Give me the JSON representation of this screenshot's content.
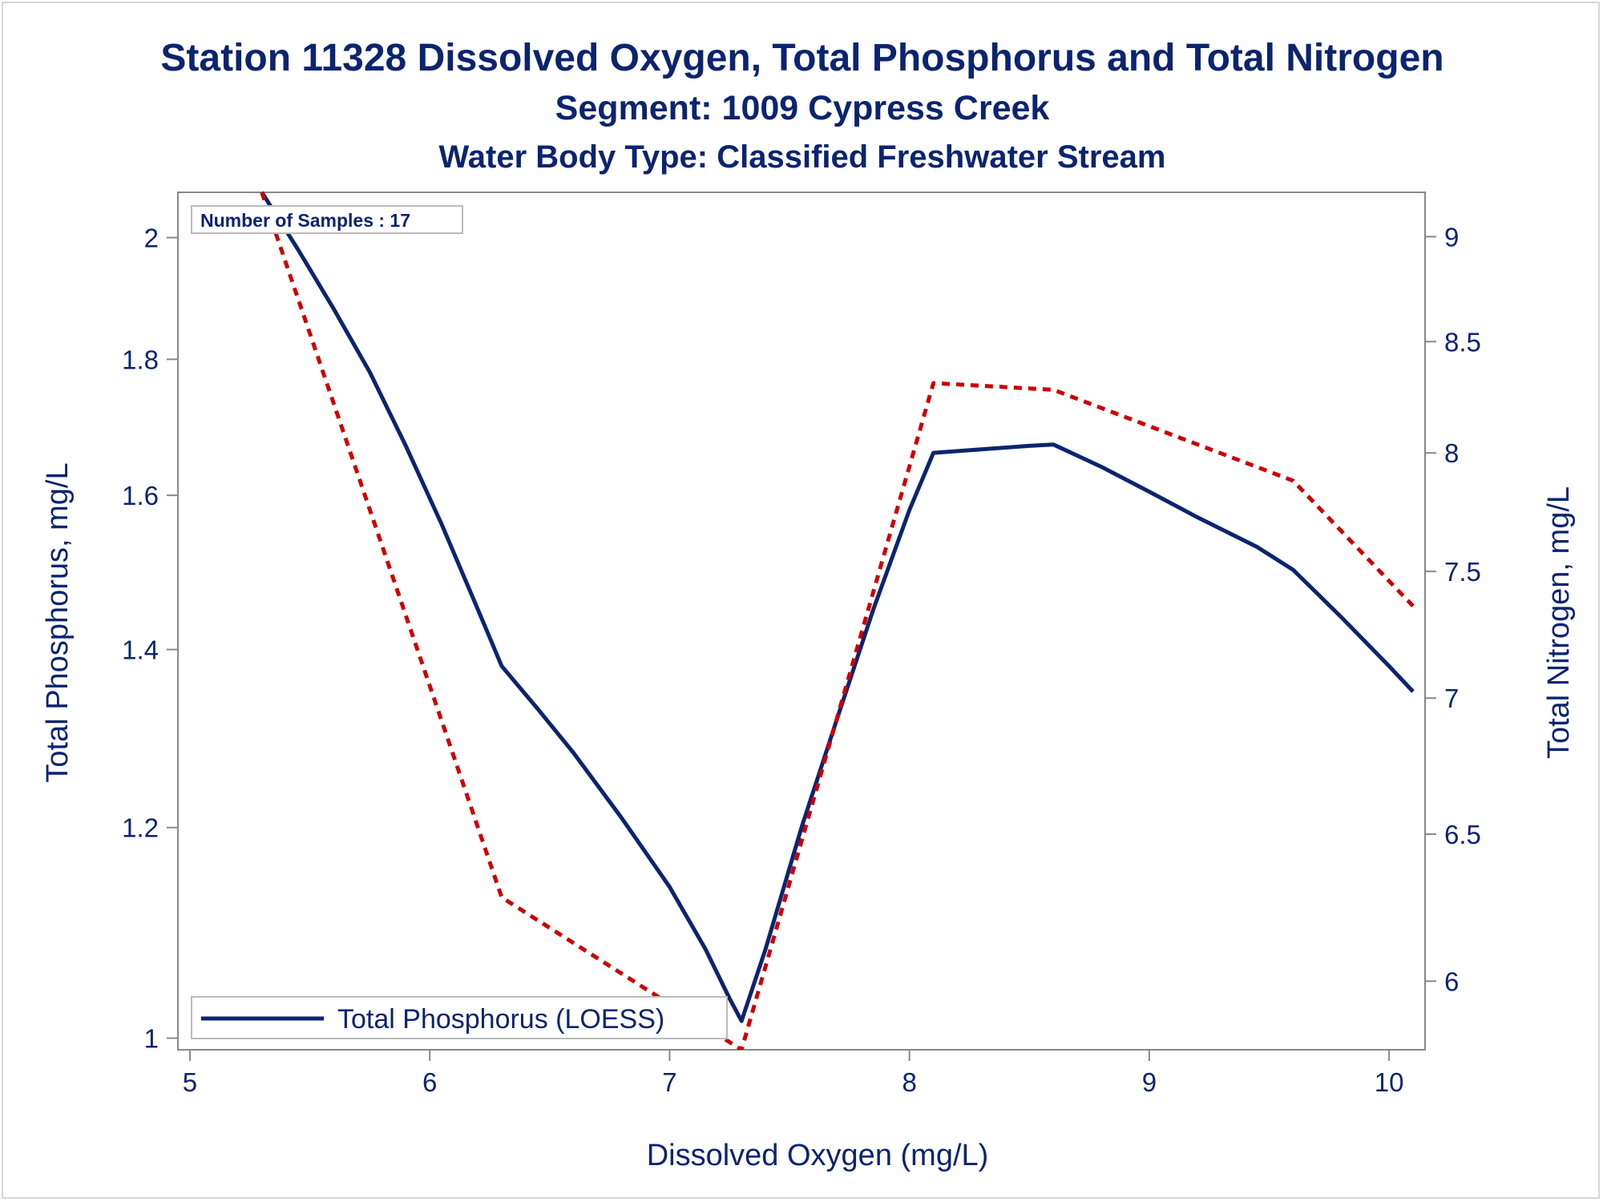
{
  "chart_data": {
    "type": "line",
    "title": "Station 11328  Dissolved Oxygen, Total Phosphorus and Total Nitrogen",
    "subtitle": "Segment: 1009  Cypress Creek",
    "subtitle2": "Water Body Type: Classified Freshwater Stream",
    "xlabel": "Dissolved Oxygen (mg/L)",
    "ylabel": "Total Phosphorus, mg/L",
    "y2label": "Total Nitrogen, mg/L",
    "xlim": [
      4.95,
      10.15
    ],
    "ylim": [
      0.99,
      2.08
    ],
    "ylog": true,
    "y2lim": [
      5.78,
      9.22
    ],
    "y2log": true,
    "xticks": [
      5,
      6,
      7,
      8,
      9,
      10
    ],
    "yticks": [
      1,
      1.2,
      1.4,
      1.6,
      1.8,
      2
    ],
    "y2ticks": [
      6,
      6.5,
      7,
      7.5,
      8,
      8.5,
      9
    ],
    "grid": false,
    "annotation": "Number of Samples : 17",
    "legend": {
      "position": "bottom-left",
      "entries": [
        "Total Phosphorus (LOESS)"
      ]
    },
    "colors": {
      "phosphorus": "#0b2470",
      "nitrogen": "#cc0000",
      "axis": "#888888"
    },
    "series": [
      {
        "name": "Total Phosphorus (LOESS)",
        "axis": "y",
        "style": "solid",
        "x": [
          5.3,
          5.45,
          5.6,
          5.75,
          5.9,
          6.05,
          6.2,
          6.3,
          6.45,
          6.6,
          6.8,
          7.0,
          7.15,
          7.25,
          7.3,
          7.4,
          7.55,
          7.7,
          7.85,
          8.0,
          8.1,
          8.3,
          8.5,
          8.6,
          8.8,
          9.0,
          9.2,
          9.45,
          9.6,
          9.8,
          10.0,
          10.1
        ],
        "y": [
          2.08,
          1.98,
          1.88,
          1.78,
          1.67,
          1.56,
          1.45,
          1.38,
          1.33,
          1.28,
          1.21,
          1.14,
          1.08,
          1.035,
          1.015,
          1.08,
          1.2,
          1.32,
          1.45,
          1.58,
          1.66,
          1.665,
          1.67,
          1.672,
          1.64,
          1.605,
          1.57,
          1.53,
          1.5,
          1.44,
          1.38,
          1.35
        ]
      },
      {
        "name": "Total Nitrogen",
        "axis": "y2",
        "style": "dashed",
        "x": [
          5.3,
          6.3,
          7.3,
          8.1,
          8.6,
          9.6,
          10.1
        ],
        "y": [
          9.22,
          6.28,
          5.78,
          8.31,
          8.28,
          7.88,
          7.36
        ]
      }
    ]
  }
}
